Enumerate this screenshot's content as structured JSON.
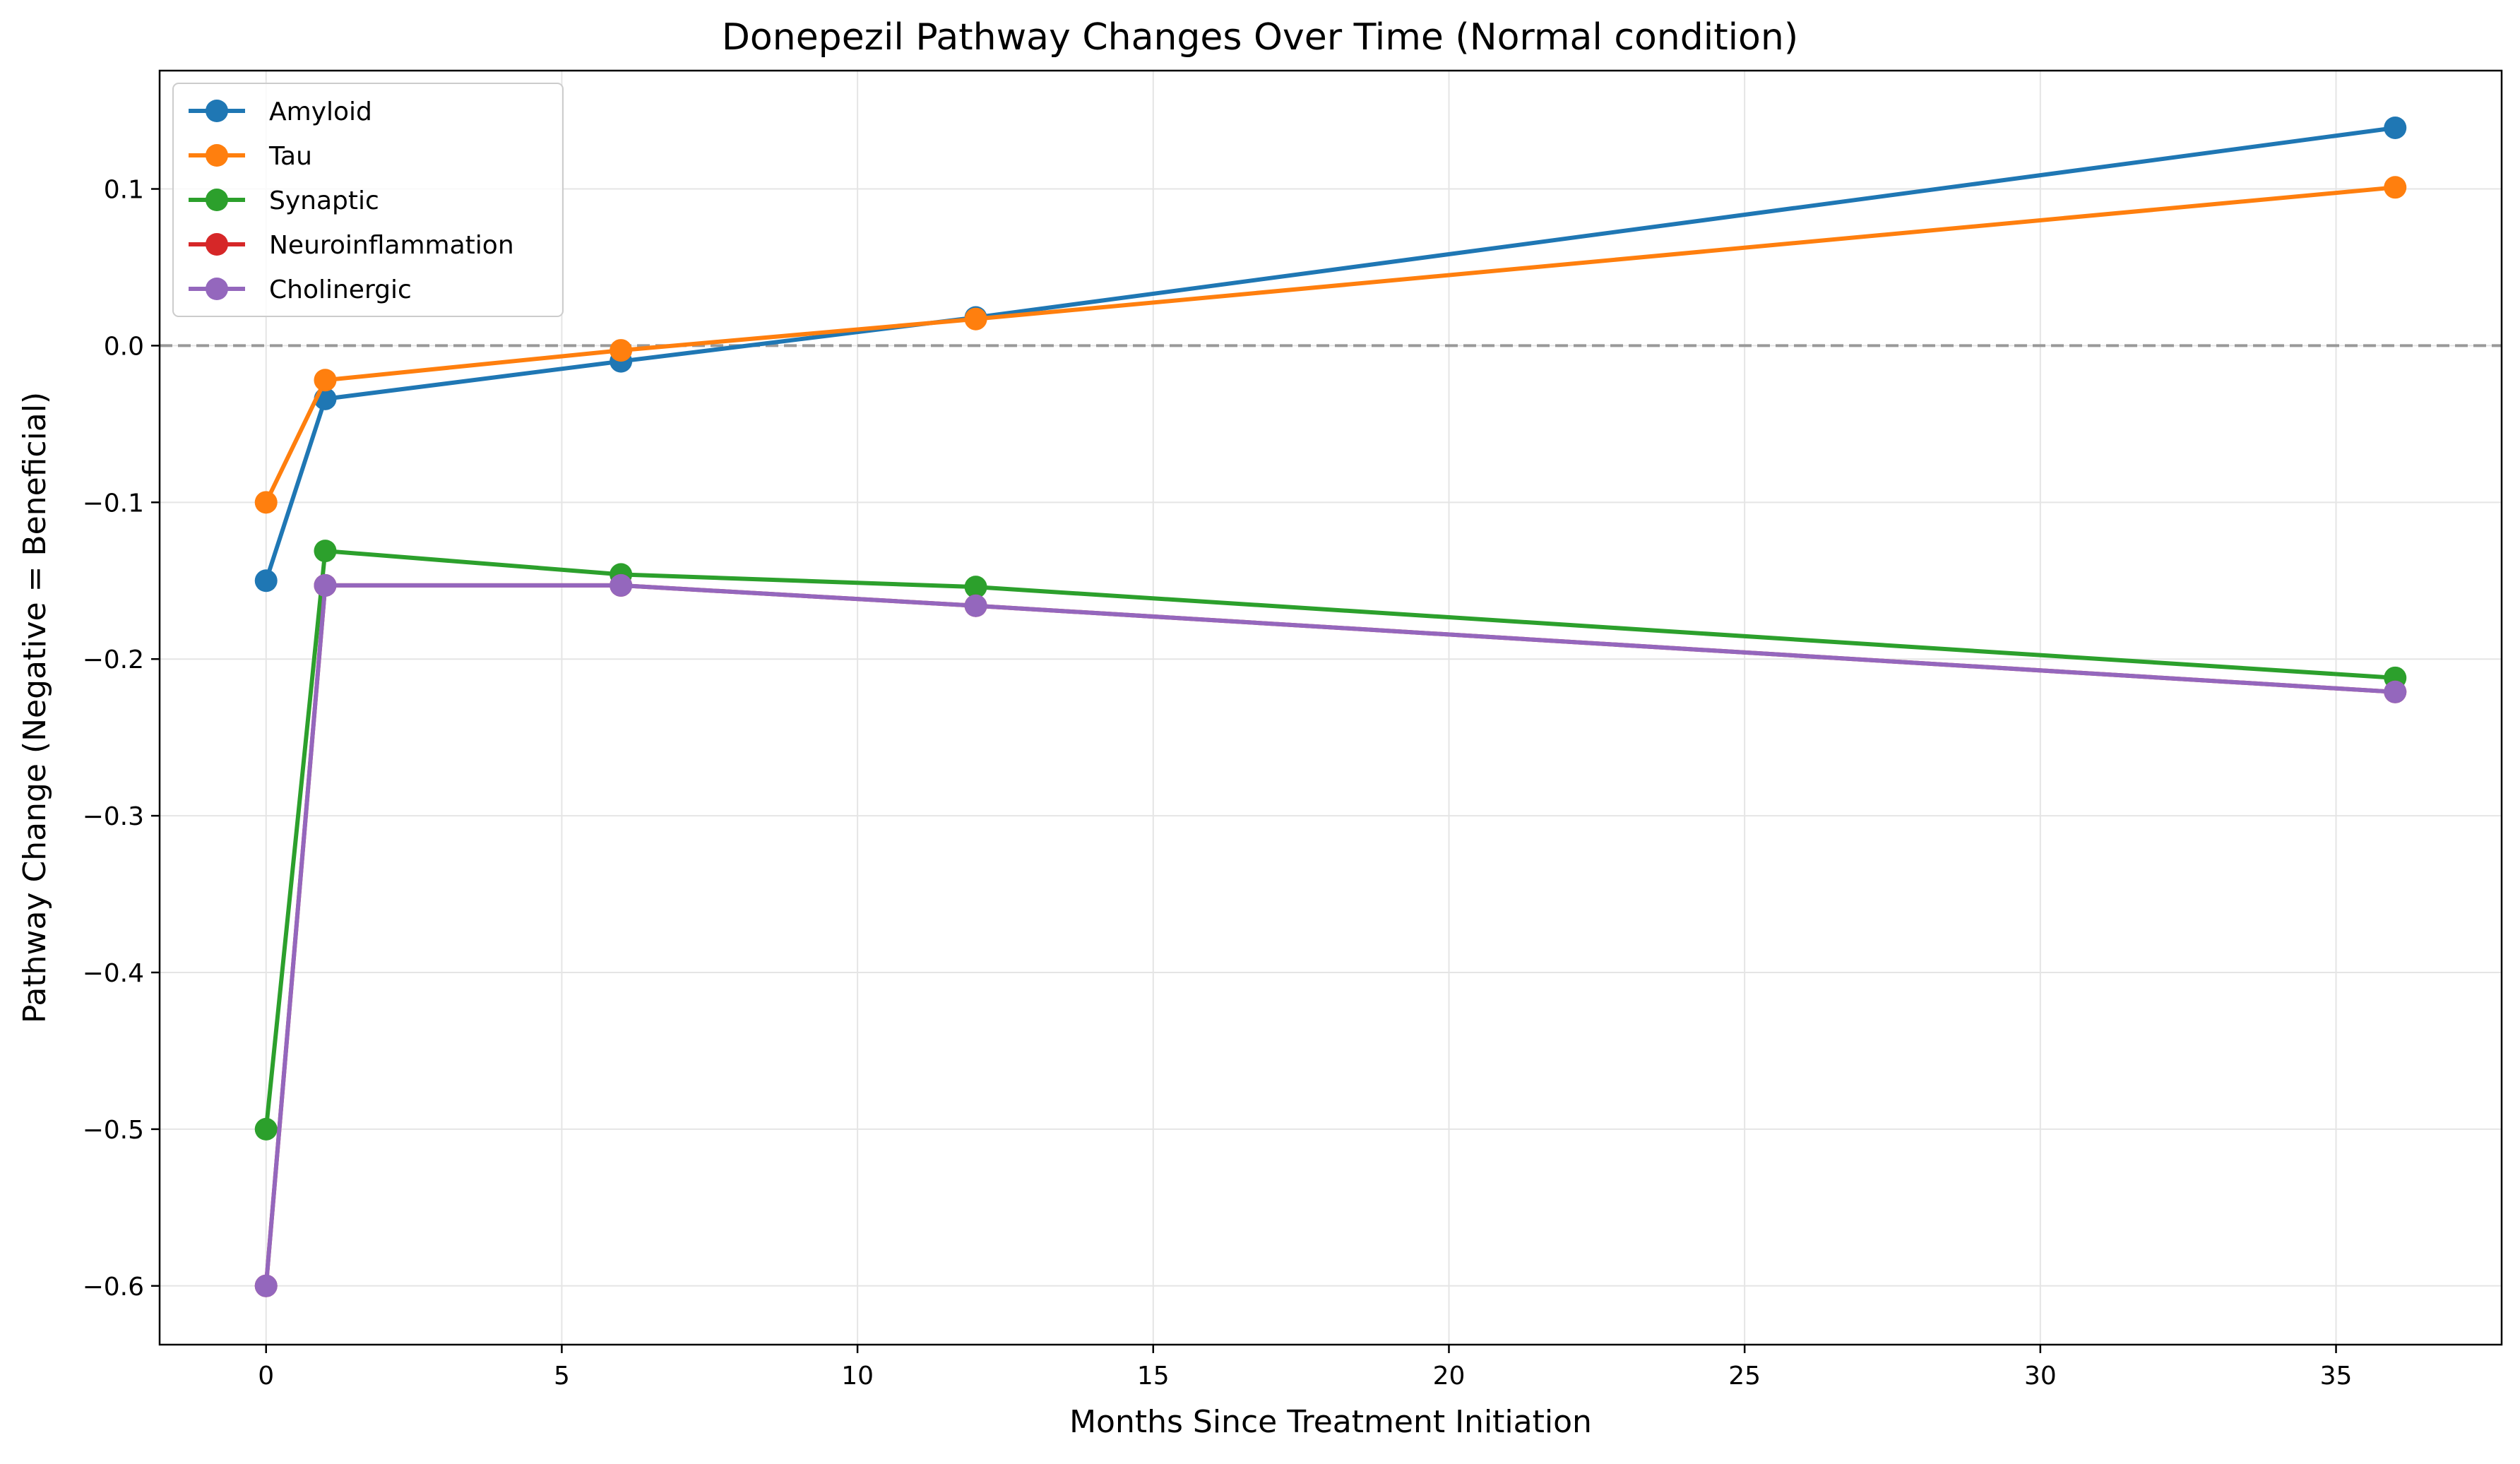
{
  "chart_data": {
    "type": "line",
    "title": "Donepezil Pathway Changes Over Time (Normal condition)",
    "xlabel": "Months Since Treatment Initiation",
    "ylabel": "Pathway Change (Negative = Beneficial)",
    "xlim": [
      -1.8,
      37.8
    ],
    "ylim": [
      -0.6375,
      0.1755
    ],
    "xticks": [
      0,
      5,
      10,
      15,
      20,
      25,
      30,
      35
    ],
    "yticks": [
      -0.6,
      -0.5,
      -0.4,
      -0.3,
      -0.2,
      -0.1,
      0.0,
      0.1
    ],
    "xtick_labels": [
      "0",
      "5",
      "10",
      "15",
      "20",
      "25",
      "30",
      "35"
    ],
    "ytick_labels": [
      "−0.6",
      "−0.5",
      "−0.4",
      "−0.3",
      "−0.2",
      "−0.1",
      "0.0",
      "0.1"
    ],
    "grid": true,
    "reference_line": {
      "y": 0.0,
      "style": "dashed",
      "color": "#999999"
    },
    "legend_position": "upper left",
    "x": [
      0,
      1,
      6,
      12,
      36
    ],
    "series": [
      {
        "name": "Amyloid",
        "color": "#1f77b4",
        "values": [
          -0.15,
          -0.034,
          -0.01,
          0.018,
          0.139
        ]
      },
      {
        "name": "Tau",
        "color": "#ff7f0e",
        "values": [
          -0.1,
          -0.022,
          -0.003,
          0.017,
          0.101
        ]
      },
      {
        "name": "Synaptic",
        "color": "#2ca02c",
        "values": [
          -0.5,
          -0.131,
          -0.146,
          -0.154,
          -0.212
        ]
      },
      {
        "name": "Neuroinflammation",
        "color": "#d62728",
        "values": [
          -0.6,
          -0.153,
          -0.153,
          -0.166,
          -0.221
        ]
      },
      {
        "name": "Cholinergic",
        "color": "#9467bd",
        "values": [
          -0.6,
          -0.153,
          -0.153,
          -0.166,
          -0.221
        ]
      }
    ]
  }
}
